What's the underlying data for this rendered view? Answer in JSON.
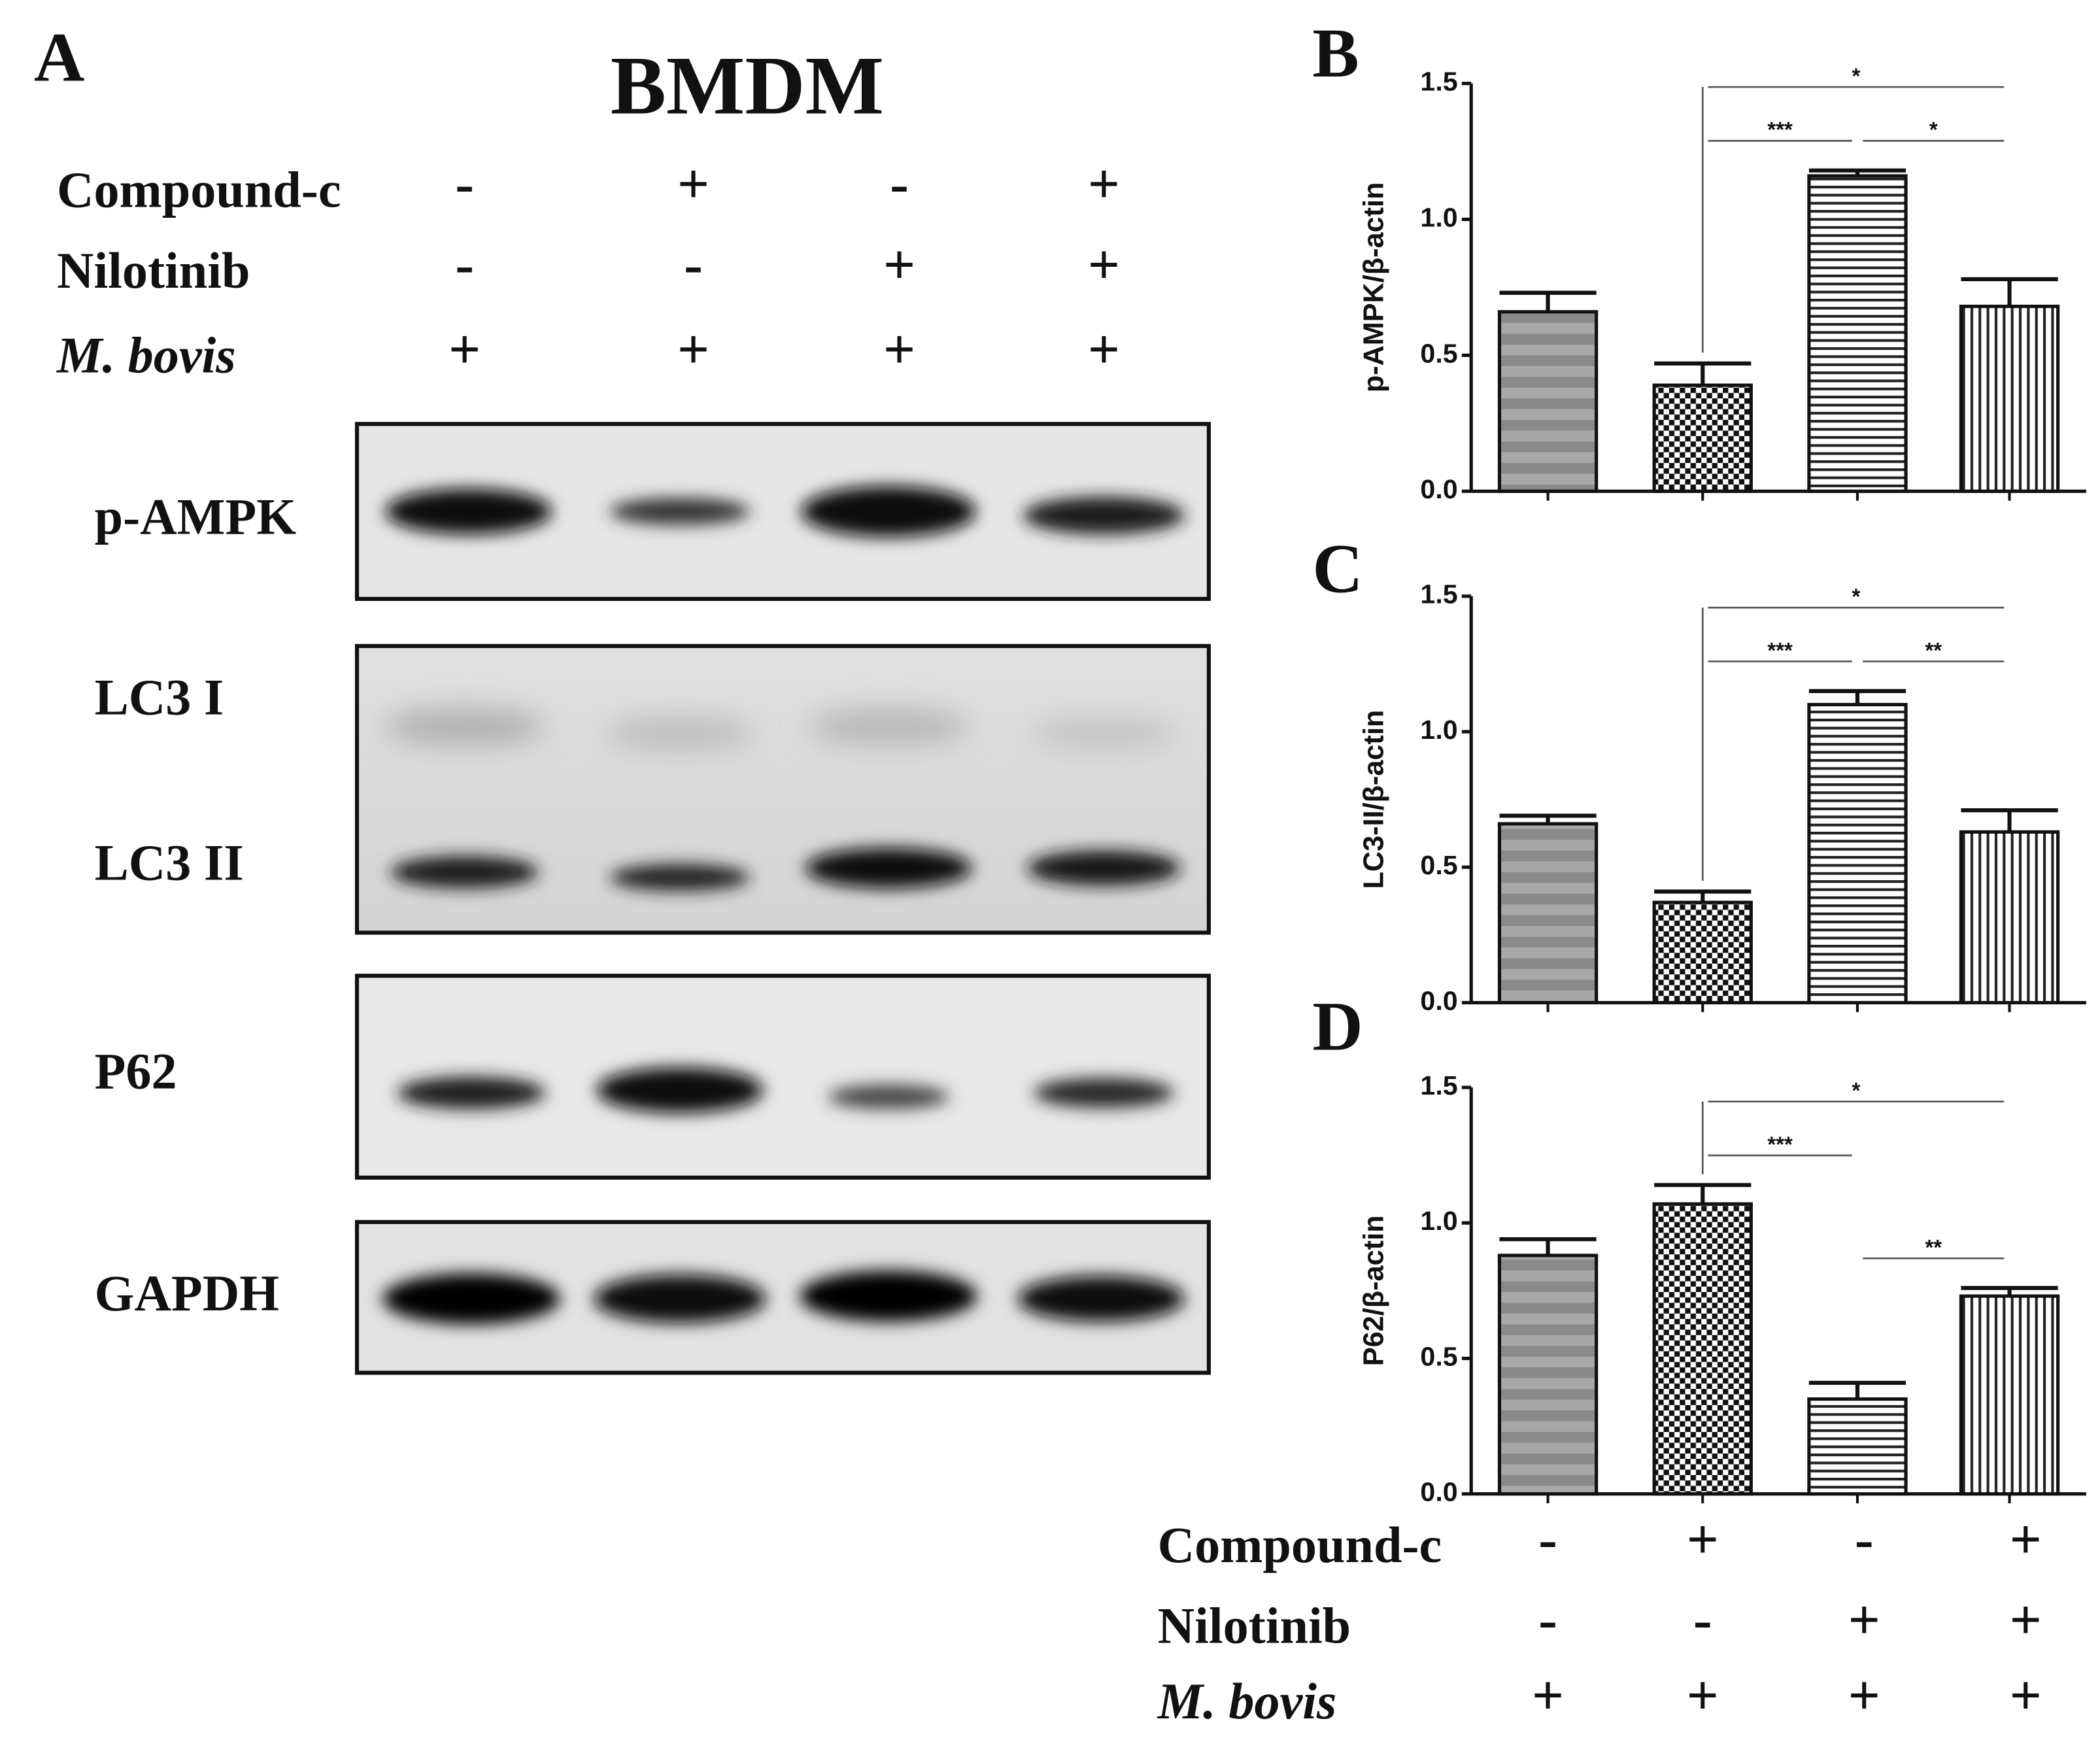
{
  "panel_a": {
    "label": "A",
    "title": "BMDM",
    "conditions": [
      {
        "name": "Compound-c",
        "values": [
          "-",
          "+",
          "-",
          "+"
        ]
      },
      {
        "name": "Nilotinib",
        "values": [
          "-",
          "-",
          "+",
          "+"
        ]
      },
      {
        "name": "M. bovis",
        "values": [
          "+",
          "+",
          "+",
          "+"
        ]
      }
    ],
    "blots": [
      "p-AMPK",
      "LC3 I",
      "LC3 II",
      "P62",
      "GAPDH"
    ]
  },
  "chart_data": [
    {
      "type": "bar",
      "label": "B",
      "y_label": "p-AMPK/β-actin",
      "values": [
        0.66,
        0.39,
        1.16,
        0.68
      ],
      "errors": [
        0.07,
        0.08,
        0.02,
        0.1
      ],
      "ylim": [
        0,
        1.5
      ],
      "yticks": [
        {
          "value": 0,
          "label": "0.0"
        },
        {
          "value": 0.5,
          "label": "0.5"
        },
        {
          "value": 1,
          "label": "1.0"
        },
        {
          "value": 1.5,
          "label": "1.5"
        }
      ],
      "significance": [
        {
          "pair": [
            1,
            3
          ],
          "label": "*"
        },
        {
          "pair": [
            1,
            2
          ],
          "label": "***"
        },
        {
          "pair": [
            2,
            3
          ],
          "label": "*"
        }
      ]
    },
    {
      "type": "bar",
      "label": "C",
      "y_label": "LC3-II/β-actin",
      "values": [
        0.66,
        0.37,
        1.1,
        0.63
      ],
      "errors": [
        0.03,
        0.04,
        0.05,
        0.08
      ],
      "ylim": [
        0,
        1.5
      ],
      "yticks": [
        {
          "value": 0,
          "label": "0.0"
        },
        {
          "value": 0.5,
          "label": "0.5"
        },
        {
          "value": 1,
          "label": "1.0"
        },
        {
          "value": 1.5,
          "label": "1.5"
        }
      ],
      "significance": [
        {
          "pair": [
            1,
            3
          ],
          "label": "*"
        },
        {
          "pair": [
            1,
            2
          ],
          "label": "***"
        },
        {
          "pair": [
            2,
            3
          ],
          "label": "**"
        }
      ]
    },
    {
      "type": "bar",
      "label": "D",
      "y_label": "P62/β-actin",
      "values": [
        0.88,
        1.07,
        0.35,
        0.73
      ],
      "errors": [
        0.06,
        0.07,
        0.06,
        0.03
      ],
      "ylim": [
        0,
        1.5
      ],
      "yticks": [
        {
          "value": 0,
          "label": "0.0"
        },
        {
          "value": 0.5,
          "label": "0.5"
        },
        {
          "value": 1,
          "label": "1.0"
        },
        {
          "value": 1.5,
          "label": "1.5"
        }
      ],
      "significance": [
        {
          "pair": [
            1,
            3
          ],
          "label": "*"
        },
        {
          "pair": [
            1,
            2
          ],
          "label": "***"
        },
        {
          "pair": [
            2,
            3
          ],
          "label": "**"
        }
      ]
    }
  ]
}
